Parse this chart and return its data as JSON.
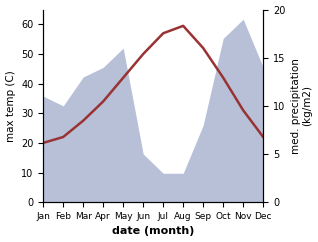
{
  "months": [
    "Jan",
    "Feb",
    "Mar",
    "Apr",
    "May",
    "Jun",
    "Jul",
    "Aug",
    "Sep",
    "Oct",
    "Nov",
    "Dec"
  ],
  "month_indices": [
    1,
    2,
    3,
    4,
    5,
    6,
    7,
    8,
    9,
    10,
    11,
    12
  ],
  "temperature": [
    20.0,
    22.0,
    27.5,
    34.0,
    42.0,
    50.0,
    57.0,
    59.5,
    52.0,
    42.0,
    31.0,
    22.0
  ],
  "precipitation_raw": [
    11.0,
    10.0,
    13.0,
    14.0,
    16.0,
    5.0,
    3.0,
    3.0,
    8.0,
    17.0,
    19.0,
    14.0
  ],
  "temp_color": "#993333",
  "precip_fill_color": "#b8c0d8",
  "left_ylim": [
    0,
    65
  ],
  "right_ylim": [
    0,
    65
  ],
  "left_yticks": [
    0,
    10,
    20,
    30,
    40,
    50,
    60
  ],
  "right_yticks_vals": [
    0,
    5,
    10,
    15,
    20
  ],
  "right_yticks_pos": [
    0,
    16.25,
    32.5,
    48.75,
    65.0
  ],
  "ylabel_left": "max temp (C)",
  "ylabel_right": "med. precipitation\n(kg/m2)",
  "xlabel": "date (month)",
  "bg_color": "#ffffff",
  "plot_bg_color": "#ffffff",
  "precip_scale": 3.25
}
